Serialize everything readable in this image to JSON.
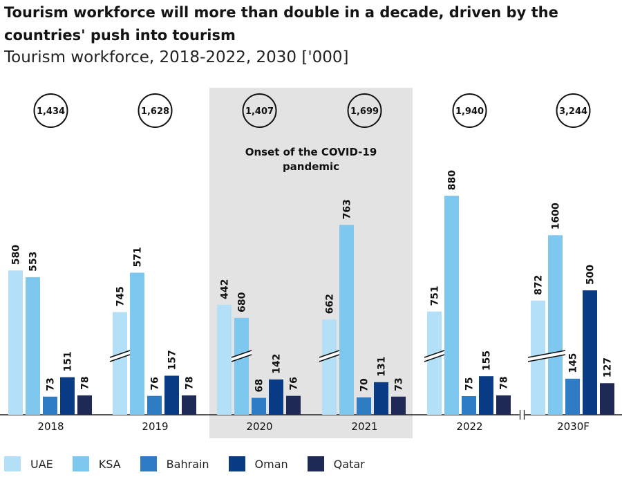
{
  "title": "Tourism workforce will more than double in a decade, driven by the countries' push into tourism",
  "subtitle": "Tourism workforce, 2018-2022, 2030 ['000]",
  "chart_data": {
    "type": "bar",
    "categories": [
      "2018",
      "2019",
      "2020",
      "2021",
      "2022",
      "2030F"
    ],
    "series": [
      {
        "name": "UAE",
        "color": "#b3e0f7",
        "values": [
          580,
          745,
          442,
          662,
          751,
          872
        ],
        "axis_break": [
          false,
          true,
          false,
          true,
          true,
          true
        ]
      },
      {
        "name": "KSA",
        "color": "#7ec8ef",
        "values": [
          553,
          571,
          680,
          763,
          880,
          1600
        ],
        "axis_break": [
          false,
          false,
          true,
          false,
          false,
          true
        ]
      },
      {
        "name": "Bahrain",
        "color": "#2e7cc4",
        "values": [
          73,
          76,
          68,
          70,
          75,
          145
        ]
      },
      {
        "name": "Oman",
        "color": "#0a3b85",
        "values": [
          151,
          157,
          142,
          131,
          155,
          500
        ]
      },
      {
        "name": "Qatar",
        "color": "#1e2a55",
        "values": [
          78,
          78,
          76,
          73,
          78,
          127
        ]
      }
    ],
    "totals": [
      "1,434",
      "1,628",
      "1,407",
      "1,699",
      "1,940",
      "3,244"
    ],
    "units": "'000",
    "highlight": {
      "categories": [
        "2020",
        "2021"
      ],
      "label_line1": "Onset of the COVID-19",
      "label_line2": "pandemic"
    },
    "x_axis_break_before": "2030F",
    "legend_position": "bottom-left"
  }
}
